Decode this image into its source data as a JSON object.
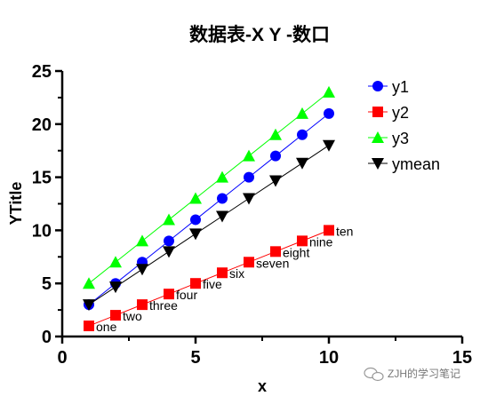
{
  "chart_data": {
    "type": "scatter",
    "title": "数据表-X Y -数口",
    "xlabel": "x",
    "ylabel": "YTitle",
    "xlim": [
      0,
      15
    ],
    "ylim": [
      0,
      25
    ],
    "x_ticks": [
      0,
      5,
      10,
      15
    ],
    "y_ticks": [
      0,
      5,
      10,
      15,
      20,
      25
    ],
    "grid": false,
    "legend_position": "top-right",
    "x": [
      1,
      2,
      3,
      4,
      5,
      6,
      7,
      8,
      9,
      10
    ],
    "series": [
      {
        "name": "y1",
        "marker": "circle",
        "color": "#0000ff",
        "line_color": "#0000ff",
        "values": [
          3,
          5,
          7,
          9,
          11,
          13,
          15,
          17,
          19,
          21
        ]
      },
      {
        "name": "y2",
        "marker": "square",
        "color": "#ff0000",
        "line_color": "#ff0000",
        "values": [
          1,
          2,
          3,
          4,
          5,
          6,
          7,
          8,
          9,
          10
        ],
        "point_labels": [
          "one",
          "two",
          "three",
          "four",
          "five",
          "six",
          "seven",
          "eight",
          "nine",
          "ten"
        ]
      },
      {
        "name": "y3",
        "marker": "triangle-up",
        "color": "#00ff00",
        "line_color": "#00ff00",
        "values": [
          5,
          7,
          9,
          11,
          13,
          15,
          17,
          19,
          21,
          23
        ]
      },
      {
        "name": "ymean",
        "marker": "triangle-down",
        "color": "#000000",
        "line_color": "#000000",
        "values": [
          3,
          4.67,
          6.33,
          8,
          9.67,
          11.33,
          13,
          14.67,
          16.33,
          18
        ]
      }
    ]
  },
  "watermark": {
    "text": "ZJH的学习笔记"
  }
}
